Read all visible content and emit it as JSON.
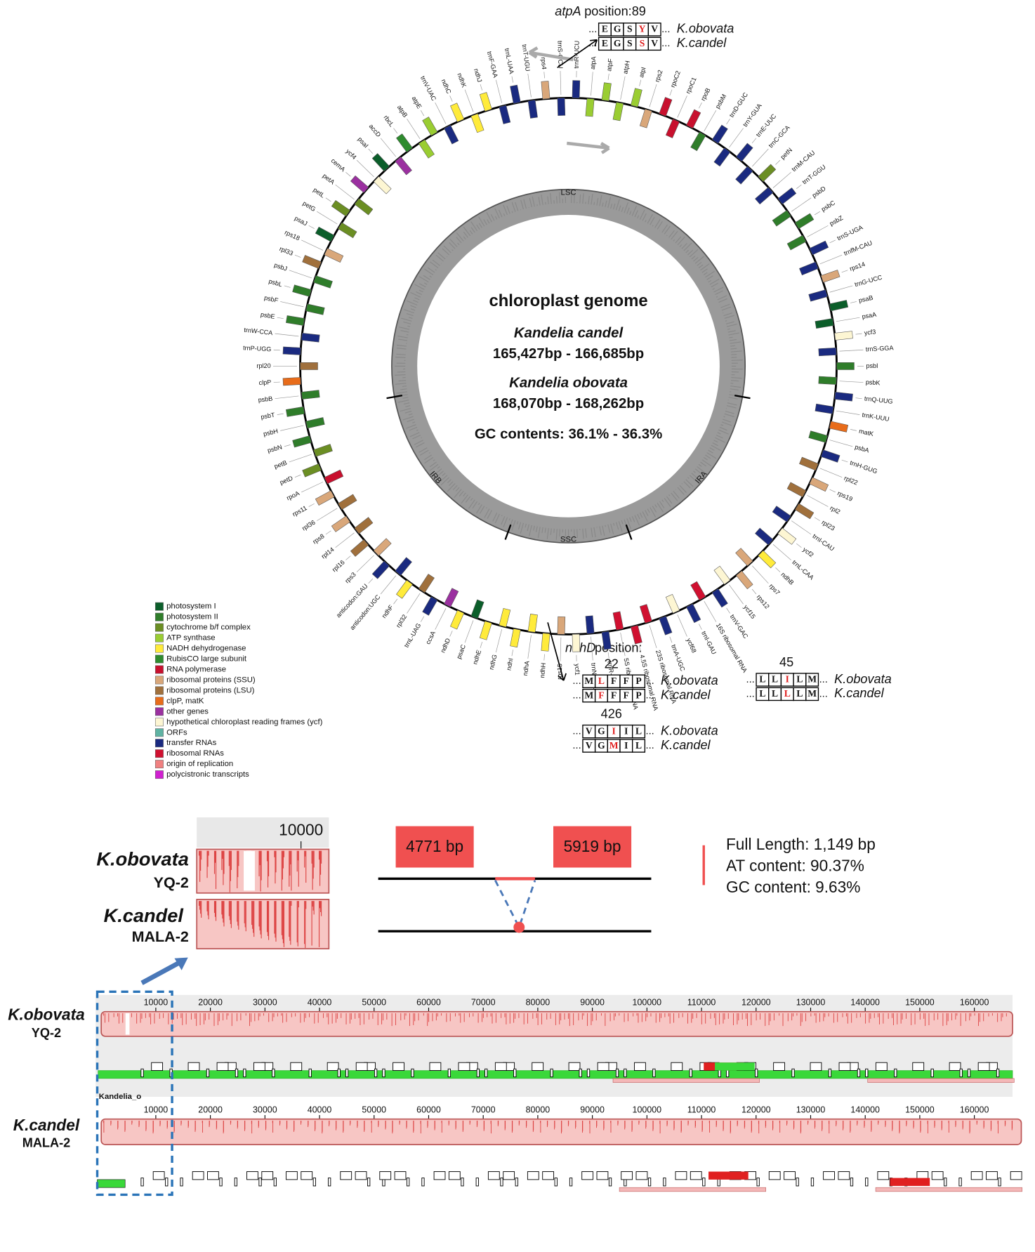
{
  "genome_map": {
    "title": "chloroplast genome",
    "species": [
      {
        "name": "Kandelia candel",
        "length": "165,427bp - 166,685bp"
      },
      {
        "name": "Kandelia obovata",
        "length": "168,070bp - 168,262bp"
      }
    ],
    "gc": "GC contents: 36.1% - 36.3%",
    "regions": [
      "LSC",
      "IRA",
      "SSC",
      "IRB"
    ],
    "genes": [
      {
        "name": "trnR-UCU",
        "color": "#1a2a80"
      },
      {
        "name": "atpA",
        "color": "#9acd32"
      },
      {
        "name": "atpF",
        "color": "#9acd32"
      },
      {
        "name": "atpH",
        "color": "#9acd32"
      },
      {
        "name": "atpI",
        "color": "#9acd32"
      },
      {
        "name": "rps2",
        "color": "#d9a77a"
      },
      {
        "name": "rpoC2",
        "color": "#c8102e"
      },
      {
        "name": "rpoC1",
        "color": "#c8102e"
      },
      {
        "name": "rpoB",
        "color": "#c8102e"
      },
      {
        "name": "psbM",
        "color": "#2f7d2a"
      },
      {
        "name": "trnD-GUC",
        "color": "#1a2a80"
      },
      {
        "name": "trnY-GUA",
        "color": "#1a2a80"
      },
      {
        "name": "trnE-UUC",
        "color": "#1a2a80"
      },
      {
        "name": "trnC-GCA",
        "color": "#1a2a80"
      },
      {
        "name": "petN",
        "color": "#6b8e23"
      },
      {
        "name": "trnM-CAU",
        "color": "#1a2a80"
      },
      {
        "name": "trnT-GGU",
        "color": "#1a2a80"
      },
      {
        "name": "psbD",
        "color": "#2f7d2a"
      },
      {
        "name": "psbC",
        "color": "#2f7d2a"
      },
      {
        "name": "psbZ",
        "color": "#2f7d2a"
      },
      {
        "name": "trnS-UGA",
        "color": "#1a2a80"
      },
      {
        "name": "trnfM-CAU",
        "color": "#1a2a80"
      },
      {
        "name": "rps14",
        "color": "#d9a77a"
      },
      {
        "name": "trnG-UCC",
        "color": "#1a2a80"
      },
      {
        "name": "psaB",
        "color": "#0b5e2a"
      },
      {
        "name": "psaA",
        "color": "#0b5e2a"
      },
      {
        "name": "ycf3",
        "color": "#fdf6d3"
      },
      {
        "name": "trnS-GGA",
        "color": "#1a2a80"
      },
      {
        "name": "psbI",
        "color": "#2f7d2a"
      },
      {
        "name": "psbK",
        "color": "#2f7d2a"
      },
      {
        "name": "trnQ-UUG",
        "color": "#1a2a80"
      },
      {
        "name": "trnK-UUU",
        "color": "#1a2a80"
      },
      {
        "name": "matK",
        "color": "#e86c1a"
      },
      {
        "name": "psbA",
        "color": "#2f7d2a"
      },
      {
        "name": "trnH-GUG",
        "color": "#1a2a80"
      },
      {
        "name": "rpl22",
        "color": "#a0703c"
      },
      {
        "name": "rps19",
        "color": "#d9a77a"
      },
      {
        "name": "rpl2",
        "color": "#a0703c"
      },
      {
        "name": "rpl23",
        "color": "#a0703c"
      },
      {
        "name": "trnI-CAU",
        "color": "#1a2a80"
      },
      {
        "name": "ycf2",
        "color": "#fdf6d3"
      },
      {
        "name": "trnL-CAA",
        "color": "#1a2a80"
      },
      {
        "name": "ndhB",
        "color": "#ffeb3b"
      },
      {
        "name": "rps7",
        "color": "#d9a77a"
      },
      {
        "name": "rps12",
        "color": "#d9a77a"
      },
      {
        "name": "ycf15",
        "color": "#fdf6d3"
      },
      {
        "name": "trnV-GAC",
        "color": "#1a2a80"
      },
      {
        "name": "16S ribosomal RNA",
        "color": "#d01030"
      },
      {
        "name": "trnI-GAU",
        "color": "#1a2a80"
      },
      {
        "name": "ycf68",
        "color": "#fdf6d3"
      },
      {
        "name": "trnA-UGC",
        "color": "#1a2a80"
      },
      {
        "name": "23S ribosomal RNA",
        "color": "#d01030"
      },
      {
        "name": "4.5S ribosomal RNA",
        "color": "#d01030"
      },
      {
        "name": "5S ribosomal RNA",
        "color": "#d01030"
      },
      {
        "name": "trnR-ACG",
        "color": "#1a2a80"
      },
      {
        "name": "trnN-GUU",
        "color": "#1a2a80"
      },
      {
        "name": "ycf1",
        "color": "#fdf6d3"
      },
      {
        "name": "rps15",
        "color": "#d9a77a"
      },
      {
        "name": "ndhH",
        "color": "#ffeb3b"
      },
      {
        "name": "ndhA",
        "color": "#ffeb3b"
      },
      {
        "name": "ndhI",
        "color": "#ffeb3b"
      },
      {
        "name": "ndhG",
        "color": "#ffeb3b"
      },
      {
        "name": "ndhE",
        "color": "#ffeb3b"
      },
      {
        "name": "psaC",
        "color": "#0b5e2a"
      },
      {
        "name": "ndhD",
        "color": "#ffeb3b"
      },
      {
        "name": "ccsA",
        "color": "#9b30a0"
      },
      {
        "name": "trnL-UAG",
        "color": "#1a2a80"
      },
      {
        "name": "rpl32",
        "color": "#a0703c"
      },
      {
        "name": "ndhF",
        "color": "#ffeb3b"
      },
      {
        "name": "anticodon:UGC",
        "color": "#1a2a80"
      },
      {
        "name": "anticodon:GAU",
        "color": "#1a2a80"
      },
      {
        "name": "rps3",
        "color": "#d9a77a"
      },
      {
        "name": "rpl16",
        "color": "#a0703c"
      },
      {
        "name": "rpl14",
        "color": "#a0703c"
      },
      {
        "name": "rps8",
        "color": "#d9a77a"
      },
      {
        "name": "rpl36",
        "color": "#a0703c"
      },
      {
        "name": "rps11",
        "color": "#d9a77a"
      },
      {
        "name": "rpoA",
        "color": "#c8102e"
      },
      {
        "name": "petD",
        "color": "#6b8e23"
      },
      {
        "name": "petB",
        "color": "#6b8e23"
      },
      {
        "name": "psbN",
        "color": "#2f7d2a"
      },
      {
        "name": "psbH",
        "color": "#2f7d2a"
      },
      {
        "name": "psbT",
        "color": "#2f7d2a"
      },
      {
        "name": "psbB",
        "color": "#2f7d2a"
      },
      {
        "name": "clpP",
        "color": "#e86c1a"
      },
      {
        "name": "rpl20",
        "color": "#a0703c"
      },
      {
        "name": "trnP-UGG",
        "color": "#1a2a80"
      },
      {
        "name": "trnW-CCA",
        "color": "#1a2a80"
      },
      {
        "name": "psbE",
        "color": "#2f7d2a"
      },
      {
        "name": "psbF",
        "color": "#2f7d2a"
      },
      {
        "name": "psbL",
        "color": "#2f7d2a"
      },
      {
        "name": "psbJ",
        "color": "#2f7d2a"
      },
      {
        "name": "rpl33",
        "color": "#a0703c"
      },
      {
        "name": "rps18",
        "color": "#d9a77a"
      },
      {
        "name": "psaJ",
        "color": "#0b5e2a"
      },
      {
        "name": "petG",
        "color": "#6b8e23"
      },
      {
        "name": "petL",
        "color": "#6b8e23"
      },
      {
        "name": "petA",
        "color": "#6b8e23"
      },
      {
        "name": "cemA",
        "color": "#9b30a0"
      },
      {
        "name": "ycf4",
        "color": "#fdf6d3"
      },
      {
        "name": "psaI",
        "color": "#0b5e2a"
      },
      {
        "name": "accD",
        "color": "#9b30a0"
      },
      {
        "name": "rbcL",
        "color": "#2e8b2e"
      },
      {
        "name": "atpB",
        "color": "#9acd32"
      },
      {
        "name": "atpE",
        "color": "#9acd32"
      },
      {
        "name": "trnV-UAC",
        "color": "#1a2a80"
      },
      {
        "name": "ndhC",
        "color": "#ffeb3b"
      },
      {
        "name": "ndhK",
        "color": "#ffeb3b"
      },
      {
        "name": "ndhJ",
        "color": "#ffeb3b"
      },
      {
        "name": "trnF-GAA",
        "color": "#1a2a80"
      },
      {
        "name": "trnL-UAA",
        "color": "#1a2a80"
      },
      {
        "name": "trnT-UGU",
        "color": "#1a2a80"
      },
      {
        "name": "rps4",
        "color": "#d9a77a"
      },
      {
        "name": "trnS-GCU",
        "color": "#1a2a80"
      }
    ]
  },
  "legend": [
    {
      "label": "photosystem I",
      "color": "#0b5e2a"
    },
    {
      "label": "photosystem II",
      "color": "#2f7d2a"
    },
    {
      "label": "cytochrome b/f complex",
      "color": "#6b8e23"
    },
    {
      "label": "ATP synthase",
      "color": "#9acd32"
    },
    {
      "label": "NADH dehydrogenase",
      "color": "#ffeb3b"
    },
    {
      "label": "RubisCO large subunit",
      "color": "#2e8b2e"
    },
    {
      "label": "RNA polymerase",
      "color": "#c8102e"
    },
    {
      "label": "ribosomal proteins (SSU)",
      "color": "#d9a77a"
    },
    {
      "label": "ribosomal proteins (LSU)",
      "color": "#a0703c"
    },
    {
      "label": "clpP, matK",
      "color": "#e86c1a"
    },
    {
      "label": "other genes",
      "color": "#9b30a0"
    },
    {
      "label": "hypothetical chloroplast reading frames (ycf)",
      "color": "#fdf6d3"
    },
    {
      "label": "ORFs",
      "color": "#5fb3a3"
    },
    {
      "label": "transfer RNAs",
      "color": "#1a2a80"
    },
    {
      "label": "ribosomal RNAs",
      "color": "#d01030"
    },
    {
      "label": "origin of replication",
      "color": "#f08080"
    },
    {
      "label": "polycistronic transcripts",
      "color": "#d020d0"
    }
  ],
  "atpA": {
    "gene": "atpA",
    "text": " position:89",
    "ellipsis": "...",
    "rows": [
      {
        "residues": [
          "E",
          "G",
          "S",
          "Y",
          "V"
        ],
        "label": "K.obovata"
      },
      {
        "residues": [
          "E",
          "G",
          "S",
          "S",
          "V"
        ],
        "label": "K.candel"
      }
    ]
  },
  "ndhD": {
    "gene": "ndhD",
    "text": " position:",
    "ellipsis": "...",
    "sites": [
      {
        "position": 22,
        "rows": [
          {
            "residues": [
              "M",
              "L",
              "F",
              "F",
              "P"
            ],
            "label": "K.obovata"
          },
          {
            "residues": [
              "M",
              "F",
              "F",
              "F",
              "P"
            ],
            "label": "K.candel"
          }
        ]
      },
      {
        "position": 45,
        "rows": [
          {
            "residues": [
              "L",
              "L",
              "I",
              "L",
              "M"
            ],
            "label": "K.obovata"
          },
          {
            "residues": [
              "L",
              "L",
              "L",
              "L",
              "M"
            ],
            "label": "K.candel"
          }
        ]
      },
      {
        "position": 426,
        "rows": [
          {
            "residues": [
              "V",
              "G",
              "I",
              "I",
              "L"
            ],
            "label": "K.obovata"
          },
          {
            "residues": [
              "V",
              "G",
              "M",
              "I",
              "L"
            ],
            "label": "K.candel"
          }
        ]
      }
    ]
  },
  "insertion": {
    "zoom_tick": 10000,
    "samples": [
      {
        "name": "K.obovata",
        "strain": "YQ-2"
      },
      {
        "name": "K.candel",
        "strain": "MALA-2"
      }
    ],
    "flanks": [
      "4771 bp",
      "5919 bp"
    ],
    "stats": [
      "Full Length: 1,149 bp",
      "AT content: 90.37%",
      "GC content: 9.63%"
    ]
  },
  "alignment": {
    "xlim": [
      0,
      167000
    ],
    "xticks": [
      10000,
      20000,
      30000,
      40000,
      50000,
      60000,
      70000,
      80000,
      90000,
      100000,
      110000,
      120000,
      130000,
      140000,
      150000,
      160000
    ],
    "track_label": "Kandelia_o"
  }
}
